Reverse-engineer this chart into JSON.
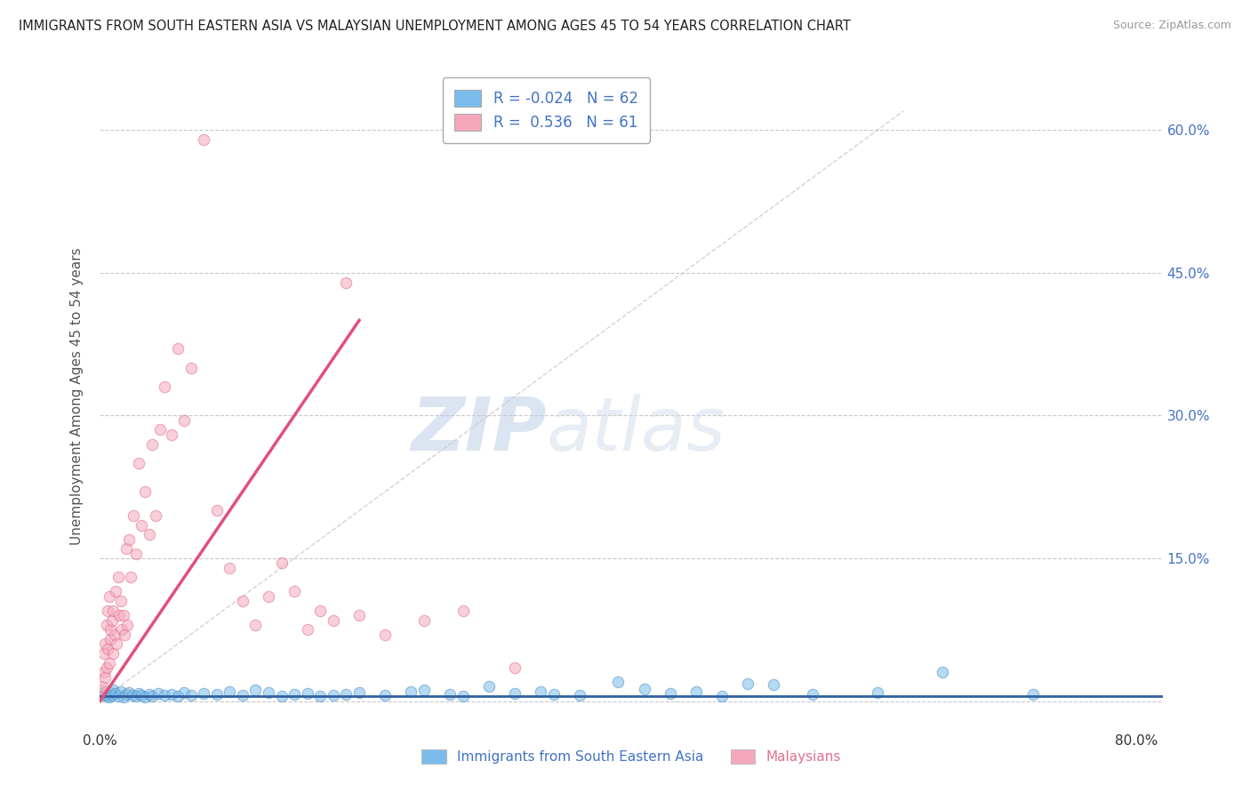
{
  "title": "IMMIGRANTS FROM SOUTH EASTERN ASIA VS MALAYSIAN UNEMPLOYMENT AMONG AGES 45 TO 54 YEARS CORRELATION CHART",
  "source": "Source: ZipAtlas.com",
  "ylabel": "Unemployment Among Ages 45 to 54 years",
  "xlim": [
    0.0,
    0.82
  ],
  "ylim": [
    -0.03,
    0.67
  ],
  "xticks": [
    0.0,
    0.8
  ],
  "xticklabels": [
    "0.0%",
    "80.0%"
  ],
  "ytick_positions": [
    0.0,
    0.15,
    0.3,
    0.45,
    0.6
  ],
  "ytick_labels_left": [
    "",
    "",
    "",
    "",
    ""
  ],
  "ytick_labels_right": [
    "",
    "15.0%",
    "30.0%",
    "45.0%",
    "60.0%"
  ],
  "watermark_zip": "ZIP",
  "watermark_atlas": "atlas",
  "color_blue": "#7bbcec",
  "color_blue_edge": "#5090c0",
  "color_pink": "#f5a8bc",
  "color_pink_edge": "#e07090",
  "color_blue_line": "#3060a0",
  "color_pink_line": "#e0507a",
  "color_dashed": "#c8c8c8",
  "background": "#ffffff",
  "grid_color": "#c8c8c8",
  "blue_scatter_x": [
    0.002,
    0.003,
    0.004,
    0.005,
    0.006,
    0.007,
    0.008,
    0.009,
    0.01,
    0.012,
    0.014,
    0.016,
    0.018,
    0.02,
    0.022,
    0.025,
    0.028,
    0.03,
    0.032,
    0.035,
    0.038,
    0.04,
    0.045,
    0.05,
    0.055,
    0.06,
    0.065,
    0.07,
    0.08,
    0.09,
    0.1,
    0.11,
    0.12,
    0.13,
    0.14,
    0.15,
    0.16,
    0.17,
    0.18,
    0.19,
    0.2,
    0.22,
    0.24,
    0.25,
    0.27,
    0.28,
    0.3,
    0.32,
    0.34,
    0.35,
    0.37,
    0.4,
    0.42,
    0.44,
    0.46,
    0.48,
    0.5,
    0.52,
    0.55,
    0.6,
    0.65,
    0.72
  ],
  "blue_scatter_y": [
    0.008,
    0.006,
    0.01,
    0.005,
    0.007,
    0.004,
    0.009,
    0.006,
    0.012,
    0.008,
    0.005,
    0.01,
    0.004,
    0.007,
    0.009,
    0.006,
    0.005,
    0.008,
    0.006,
    0.004,
    0.007,
    0.005,
    0.008,
    0.006,
    0.007,
    0.005,
    0.009,
    0.006,
    0.008,
    0.007,
    0.01,
    0.006,
    0.012,
    0.009,
    0.005,
    0.007,
    0.008,
    0.005,
    0.006,
    0.007,
    0.009,
    0.006,
    0.01,
    0.012,
    0.007,
    0.005,
    0.015,
    0.008,
    0.01,
    0.007,
    0.006,
    0.02,
    0.013,
    0.008,
    0.01,
    0.005,
    0.018,
    0.017,
    0.007,
    0.009,
    0.03,
    0.007
  ],
  "pink_scatter_x": [
    0.001,
    0.002,
    0.003,
    0.003,
    0.004,
    0.004,
    0.005,
    0.005,
    0.006,
    0.006,
    0.007,
    0.007,
    0.008,
    0.008,
    0.009,
    0.01,
    0.01,
    0.011,
    0.012,
    0.013,
    0.014,
    0.015,
    0.016,
    0.017,
    0.018,
    0.019,
    0.02,
    0.021,
    0.022,
    0.024,
    0.026,
    0.028,
    0.03,
    0.032,
    0.035,
    0.038,
    0.04,
    0.043,
    0.046,
    0.05,
    0.055,
    0.06,
    0.065,
    0.07,
    0.08,
    0.09,
    0.1,
    0.11,
    0.12,
    0.13,
    0.14,
    0.15,
    0.16,
    0.17,
    0.18,
    0.19,
    0.2,
    0.22,
    0.25,
    0.28,
    0.32
  ],
  "pink_scatter_y": [
    0.012,
    0.015,
    0.03,
    0.05,
    0.025,
    0.06,
    0.035,
    0.08,
    0.055,
    0.095,
    0.04,
    0.11,
    0.065,
    0.075,
    0.085,
    0.05,
    0.095,
    0.07,
    0.115,
    0.06,
    0.13,
    0.09,
    0.105,
    0.075,
    0.09,
    0.07,
    0.16,
    0.08,
    0.17,
    0.13,
    0.195,
    0.155,
    0.25,
    0.185,
    0.22,
    0.175,
    0.27,
    0.195,
    0.285,
    0.33,
    0.28,
    0.37,
    0.295,
    0.35,
    0.59,
    0.2,
    0.14,
    0.105,
    0.08,
    0.11,
    0.145,
    0.115,
    0.075,
    0.095,
    0.085,
    0.44,
    0.09,
    0.07,
    0.085,
    0.095,
    0.035
  ],
  "pink_line_x0": 0.0,
  "pink_line_y0": 0.0,
  "pink_line_x1": 0.2,
  "pink_line_y1": 0.4,
  "blue_line_y": 0.005
}
